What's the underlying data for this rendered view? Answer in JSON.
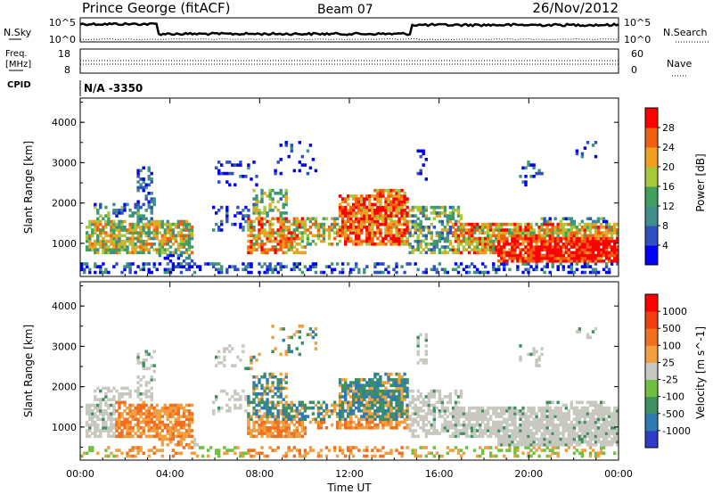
{
  "chart_data": {
    "type": "heatmap",
    "header": {
      "title": "Prince George (fitACF)",
      "beam": "Beam 07",
      "date": "26/Nov/2012"
    },
    "nsky_panel": {
      "left_label": "N.Sky",
      "left_ticks": [
        "10^5",
        "10^0"
      ],
      "right_label": "N.Search",
      "right_ticks": [
        "10^5",
        "10^0"
      ]
    },
    "freq_panel": {
      "left_label_top": "Freq.",
      "left_label_bottom": "[MHz]",
      "left_ticks": [
        "18",
        "8"
      ],
      "left_range": [
        8,
        18
      ],
      "right_label": "Nave",
      "right_ticks": [
        "60",
        "0"
      ],
      "right_range": [
        0,
        60
      ]
    },
    "cpid": {
      "label": "CPID",
      "value": "N/A -3350"
    },
    "x_axis": {
      "label": "Time UT",
      "range": [
        0,
        24
      ],
      "ticks": [
        0,
        4,
        8,
        12,
        16,
        20,
        24
      ],
      "tick_labels": [
        "00:00",
        "04:00",
        "08:00",
        "12:00",
        "16:00",
        "20:00",
        "00:00"
      ]
    },
    "panels": [
      {
        "name": "power",
        "ylabel": "Slant Range [km]",
        "ylim": [
          180,
          4600
        ],
        "yticks": [
          "1000",
          "2000",
          "3000",
          "4000"
        ],
        "colorbar_label": "Power [dB]",
        "colorbar_ticks": [
          "28",
          "24",
          "20",
          "16",
          "12",
          "8",
          "4"
        ],
        "colors": [
          "#0000ff",
          "#2e50c0",
          "#3f8d8d",
          "#40a060",
          "#a8c83c",
          "#f0a020",
          "#f06010",
          "#ff0000"
        ]
      },
      {
        "name": "velocity",
        "ylabel": "Slant Range [km]",
        "ylim": [
          180,
          4600
        ],
        "yticks": [
          "1000",
          "2000",
          "3000",
          "4000"
        ],
        "colorbar_label": "Velocity [m s^-1]",
        "colorbar_ticks": [
          "1000",
          "500",
          "100",
          "25",
          "-25",
          "-100",
          "-500",
          "-1000"
        ],
        "colors": [
          "#2e3cc8",
          "#2e7ab2",
          "#3f9060",
          "#70c040",
          "#c8c8c0",
          "#f0a040",
          "#f07020",
          "#f04010",
          "#ff0000"
        ]
      }
    ]
  }
}
